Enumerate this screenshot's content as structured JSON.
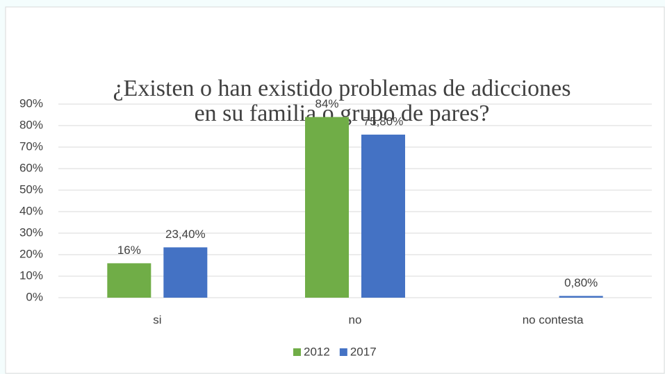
{
  "chart_data": {
    "type": "bar",
    "title": [
      "¿Existen o han existido problemas de adicciones",
      "en su familia o grupo de pares?"
    ],
    "categories": [
      "si",
      "no",
      "no contesta"
    ],
    "series": [
      {
        "name": "2012",
        "color": "#70ad47",
        "values": [
          16,
          84,
          null
        ],
        "value_labels": [
          "16%",
          "84%",
          null
        ]
      },
      {
        "name": "2017",
        "color": "#4472c4",
        "values": [
          23.4,
          75.8,
          0.8
        ],
        "value_labels": [
          "23,40%",
          "75,80%",
          "0,80%"
        ]
      }
    ],
    "ylim": [
      0,
      90
    ],
    "yticks": [
      {
        "value": 0,
        "label": "0%"
      },
      {
        "value": 10,
        "label": "10%"
      },
      {
        "value": 20,
        "label": "20%"
      },
      {
        "value": 30,
        "label": "30%"
      },
      {
        "value": 40,
        "label": "40%"
      },
      {
        "value": 50,
        "label": "50%"
      },
      {
        "value": 60,
        "label": "60%"
      },
      {
        "value": 70,
        "label": "70%"
      },
      {
        "value": 80,
        "label": "80%"
      },
      {
        "value": 90,
        "label": "90%"
      }
    ],
    "grid": true,
    "legend": "bottom"
  }
}
